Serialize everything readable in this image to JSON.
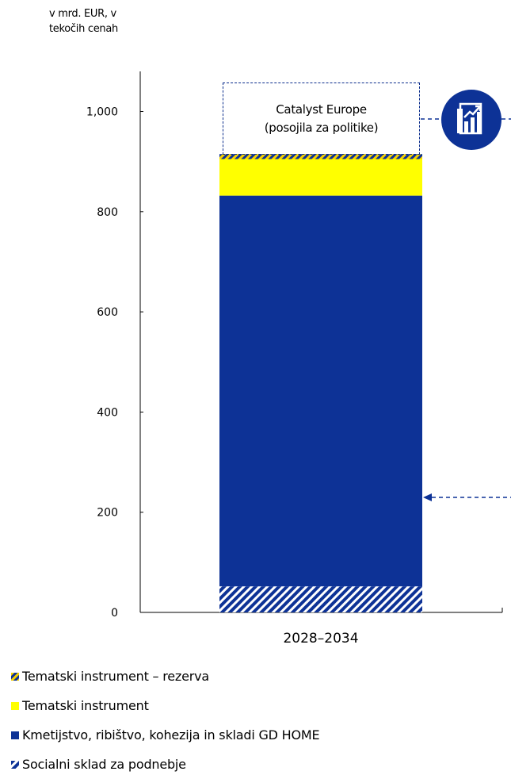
{
  "unit_label": [
    "v mrd. EUR, v",
    "tekočih cenah"
  ],
  "callout": {
    "line1": "Catalyst Europe",
    "line2": "(posojila za politike)",
    "value": 183
  },
  "icon": "bar-chart-growth-icon",
  "colors": {
    "dark_blue": "#0d3296",
    "yellow": "#ffff00",
    "hatch_yellow": "#f5d000"
  },
  "chart_data": {
    "type": "bar",
    "categories": [
      "2028–2034"
    ],
    "ylim": [
      0,
      1080
    ],
    "yticks": [
      0,
      200,
      400,
      600,
      800,
      1000
    ],
    "ytick_labels": [
      "0",
      "200",
      "400",
      "600",
      "800",
      "1,000"
    ],
    "stack_order_bottom_to_top": [
      "Socialni sklad za podnebje",
      "Kmetijstvo, ribištvo, kohezija in skladi GD HOME",
      "Tematski instrument",
      "Tematski instrument – rezerva"
    ],
    "series": [
      {
        "name": "Tematski instrument – rezerva",
        "values": [
          10
        ],
        "color": "#f5d000",
        "pattern": "hatch-yellow"
      },
      {
        "name": "Tematski instrument",
        "values": [
          73
        ],
        "color": "#ffff00",
        "pattern": "solid"
      },
      {
        "name": "Kmetijstvo, ribištvo, kohezija in skladi GD HOME",
        "values": [
          780
        ],
        "color": "#0d3296",
        "pattern": "solid"
      },
      {
        "name": "Socialni sklad za podnebje",
        "values": [
          52
        ],
        "color": "#0d3296",
        "pattern": "hatch-blue"
      }
    ]
  }
}
